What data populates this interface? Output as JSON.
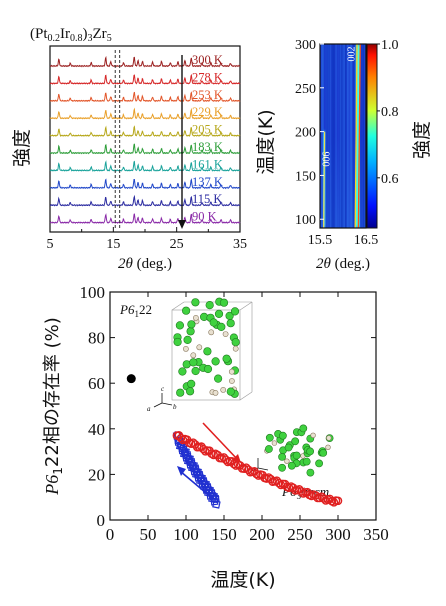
{
  "chart_data": [
    {
      "id": "xrd",
      "type": "line",
      "title_parts": [
        "(Pt",
        "0.2",
        "Ir",
        "0.8",
        ")",
        "3",
        "Zr",
        "5"
      ],
      "ylabel": "強度",
      "xlabel_italic": "2θ",
      "xlabel_rest": " (deg.)",
      "xlim": [
        5,
        35
      ],
      "xticks": [
        5,
        15,
        25,
        35
      ],
      "ticklabels": [
        "5",
        "15",
        "25",
        "35"
      ],
      "temperatures": [
        "300 K",
        "278 K",
        "253 K",
        "229 K",
        "205 K",
        "183 K",
        "161 K",
        "137 K",
        "115 K",
        "90 K"
      ],
      "colors": [
        "#9b2020",
        "#d62728",
        "#e2562a",
        "#e9a02a",
        "#b7a81c",
        "#2e9e3a",
        "#1aa39b",
        "#2148c9",
        "#2a2aa0",
        "#8a2aa8"
      ],
      "peaks": [
        [
          6.4,
          0.45
        ],
        [
          8.2,
          0.18
        ],
        [
          11.5,
          0.22
        ],
        [
          13.8,
          0.55
        ],
        [
          14.6,
          0.28
        ],
        [
          16.6,
          0.22
        ],
        [
          18.3,
          0.6
        ],
        [
          18.9,
          0.35
        ],
        [
          19.6,
          0.3
        ],
        [
          21.2,
          0.25
        ],
        [
          22.6,
          0.3
        ],
        [
          24.0,
          0.22
        ],
        [
          25.2,
          0.28
        ],
        [
          26.3,
          0.35
        ],
        [
          27.3,
          0.55
        ],
        [
          29.0,
          0.18
        ],
        [
          30.4,
          0.22
        ],
        [
          32.0,
          0.2
        ],
        [
          33.5,
          0.18
        ]
      ],
      "dashed_at": [
        15.3,
        16.0
      ]
    },
    {
      "id": "heatmap",
      "type": "heatmap",
      "ylabel": "温度(K)",
      "xlabel_italic": "2θ",
      "xlabel_rest": " (deg.)",
      "xlim": [
        15.5,
        16.5
      ],
      "ylim": [
        90,
        300
      ],
      "xticks": [
        15.5,
        16.5
      ],
      "xticklabels": [
        "15.5",
        "16.5"
      ],
      "yticks": [
        100,
        150,
        200,
        250,
        300
      ],
      "yticklabels": [
        "100",
        "150",
        "200",
        "250",
        "300"
      ],
      "colorbar_label": "強度",
      "colorbar_range": [
        0.45,
        1.0
      ],
      "colorbar_ticks": [
        0.6,
        0.8,
        1.0
      ],
      "colorbar_ticklabels": [
        "0.6",
        "0.8",
        "1.0"
      ],
      "line_006": {
        "label": "006",
        "x_at_90": 15.58,
        "x_at_300": 15.6,
        "fade_above": 200
      },
      "line_002": {
        "label": "002",
        "x_at_90": 16.3,
        "x_at_300": 16.34
      }
    },
    {
      "id": "fraction",
      "type": "scatter",
      "ylabel_parts": [
        "P6",
        "1",
        "22相の存在率 (%)"
      ],
      "xlabel": "温度(K)",
      "xlim": [
        0,
        350
      ],
      "ylim": [
        0,
        100
      ],
      "xticks": [
        0,
        50,
        100,
        150,
        200,
        250,
        300,
        350
      ],
      "xticklabels": [
        "0",
        "50",
        "100",
        "150",
        "200",
        "250",
        "300",
        "350"
      ],
      "yticks": [
        0,
        20,
        40,
        60,
        80,
        100
      ],
      "yticklabels": [
        "0",
        "20",
        "40",
        "60",
        "80",
        "100"
      ],
      "single_point": {
        "x": 28,
        "y": 62
      },
      "heating_red": {
        "x_start": 88,
        "x_end": 300,
        "y_start": 37,
        "y_end": 8
      },
      "cooling_blue": {
        "x_start": 140,
        "x_end": 88,
        "y_start": 8,
        "y_end": 37
      },
      "label_p6122_parts": [
        "P6",
        "1",
        "22"
      ],
      "label_p63mcm_parts": [
        "P6",
        "3",
        "/",
        "mcm"
      ]
    }
  ]
}
